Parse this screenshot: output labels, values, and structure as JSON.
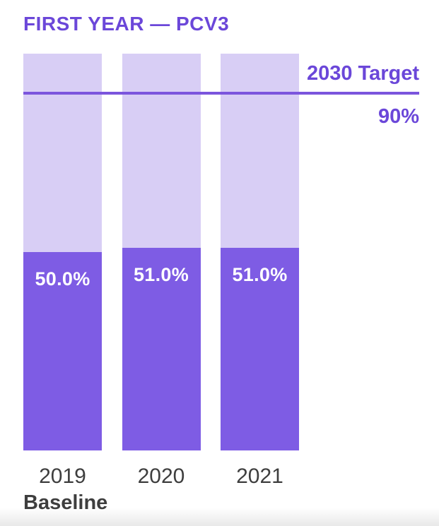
{
  "header": {
    "title": "FIRST YEAR — PCV3"
  },
  "chart_data": {
    "type": "bar",
    "title": "FIRST YEAR — PCV3",
    "categories": [
      "2019",
      "2020",
      "2021"
    ],
    "values": [
      50.0,
      51.0,
      51.0
    ],
    "value_labels": [
      "50.0%",
      "51.0%",
      "51.0%"
    ],
    "x_sub_labels": [
      "Baseline",
      "",
      ""
    ],
    "ylim": [
      0,
      100
    ],
    "track_full_value": 100,
    "grid": false,
    "legend_position": "none",
    "target": {
      "label": "2030 Target",
      "value": 90,
      "value_label": "90%"
    },
    "colors": {
      "accent_text": "#6b47d9",
      "bar_fill": "#7e5ce4",
      "bar_track": "#d8cef5",
      "target_line": "#7b55dd",
      "value_text": "#ffffff",
      "axis_text": "#3e3e3e"
    }
  }
}
